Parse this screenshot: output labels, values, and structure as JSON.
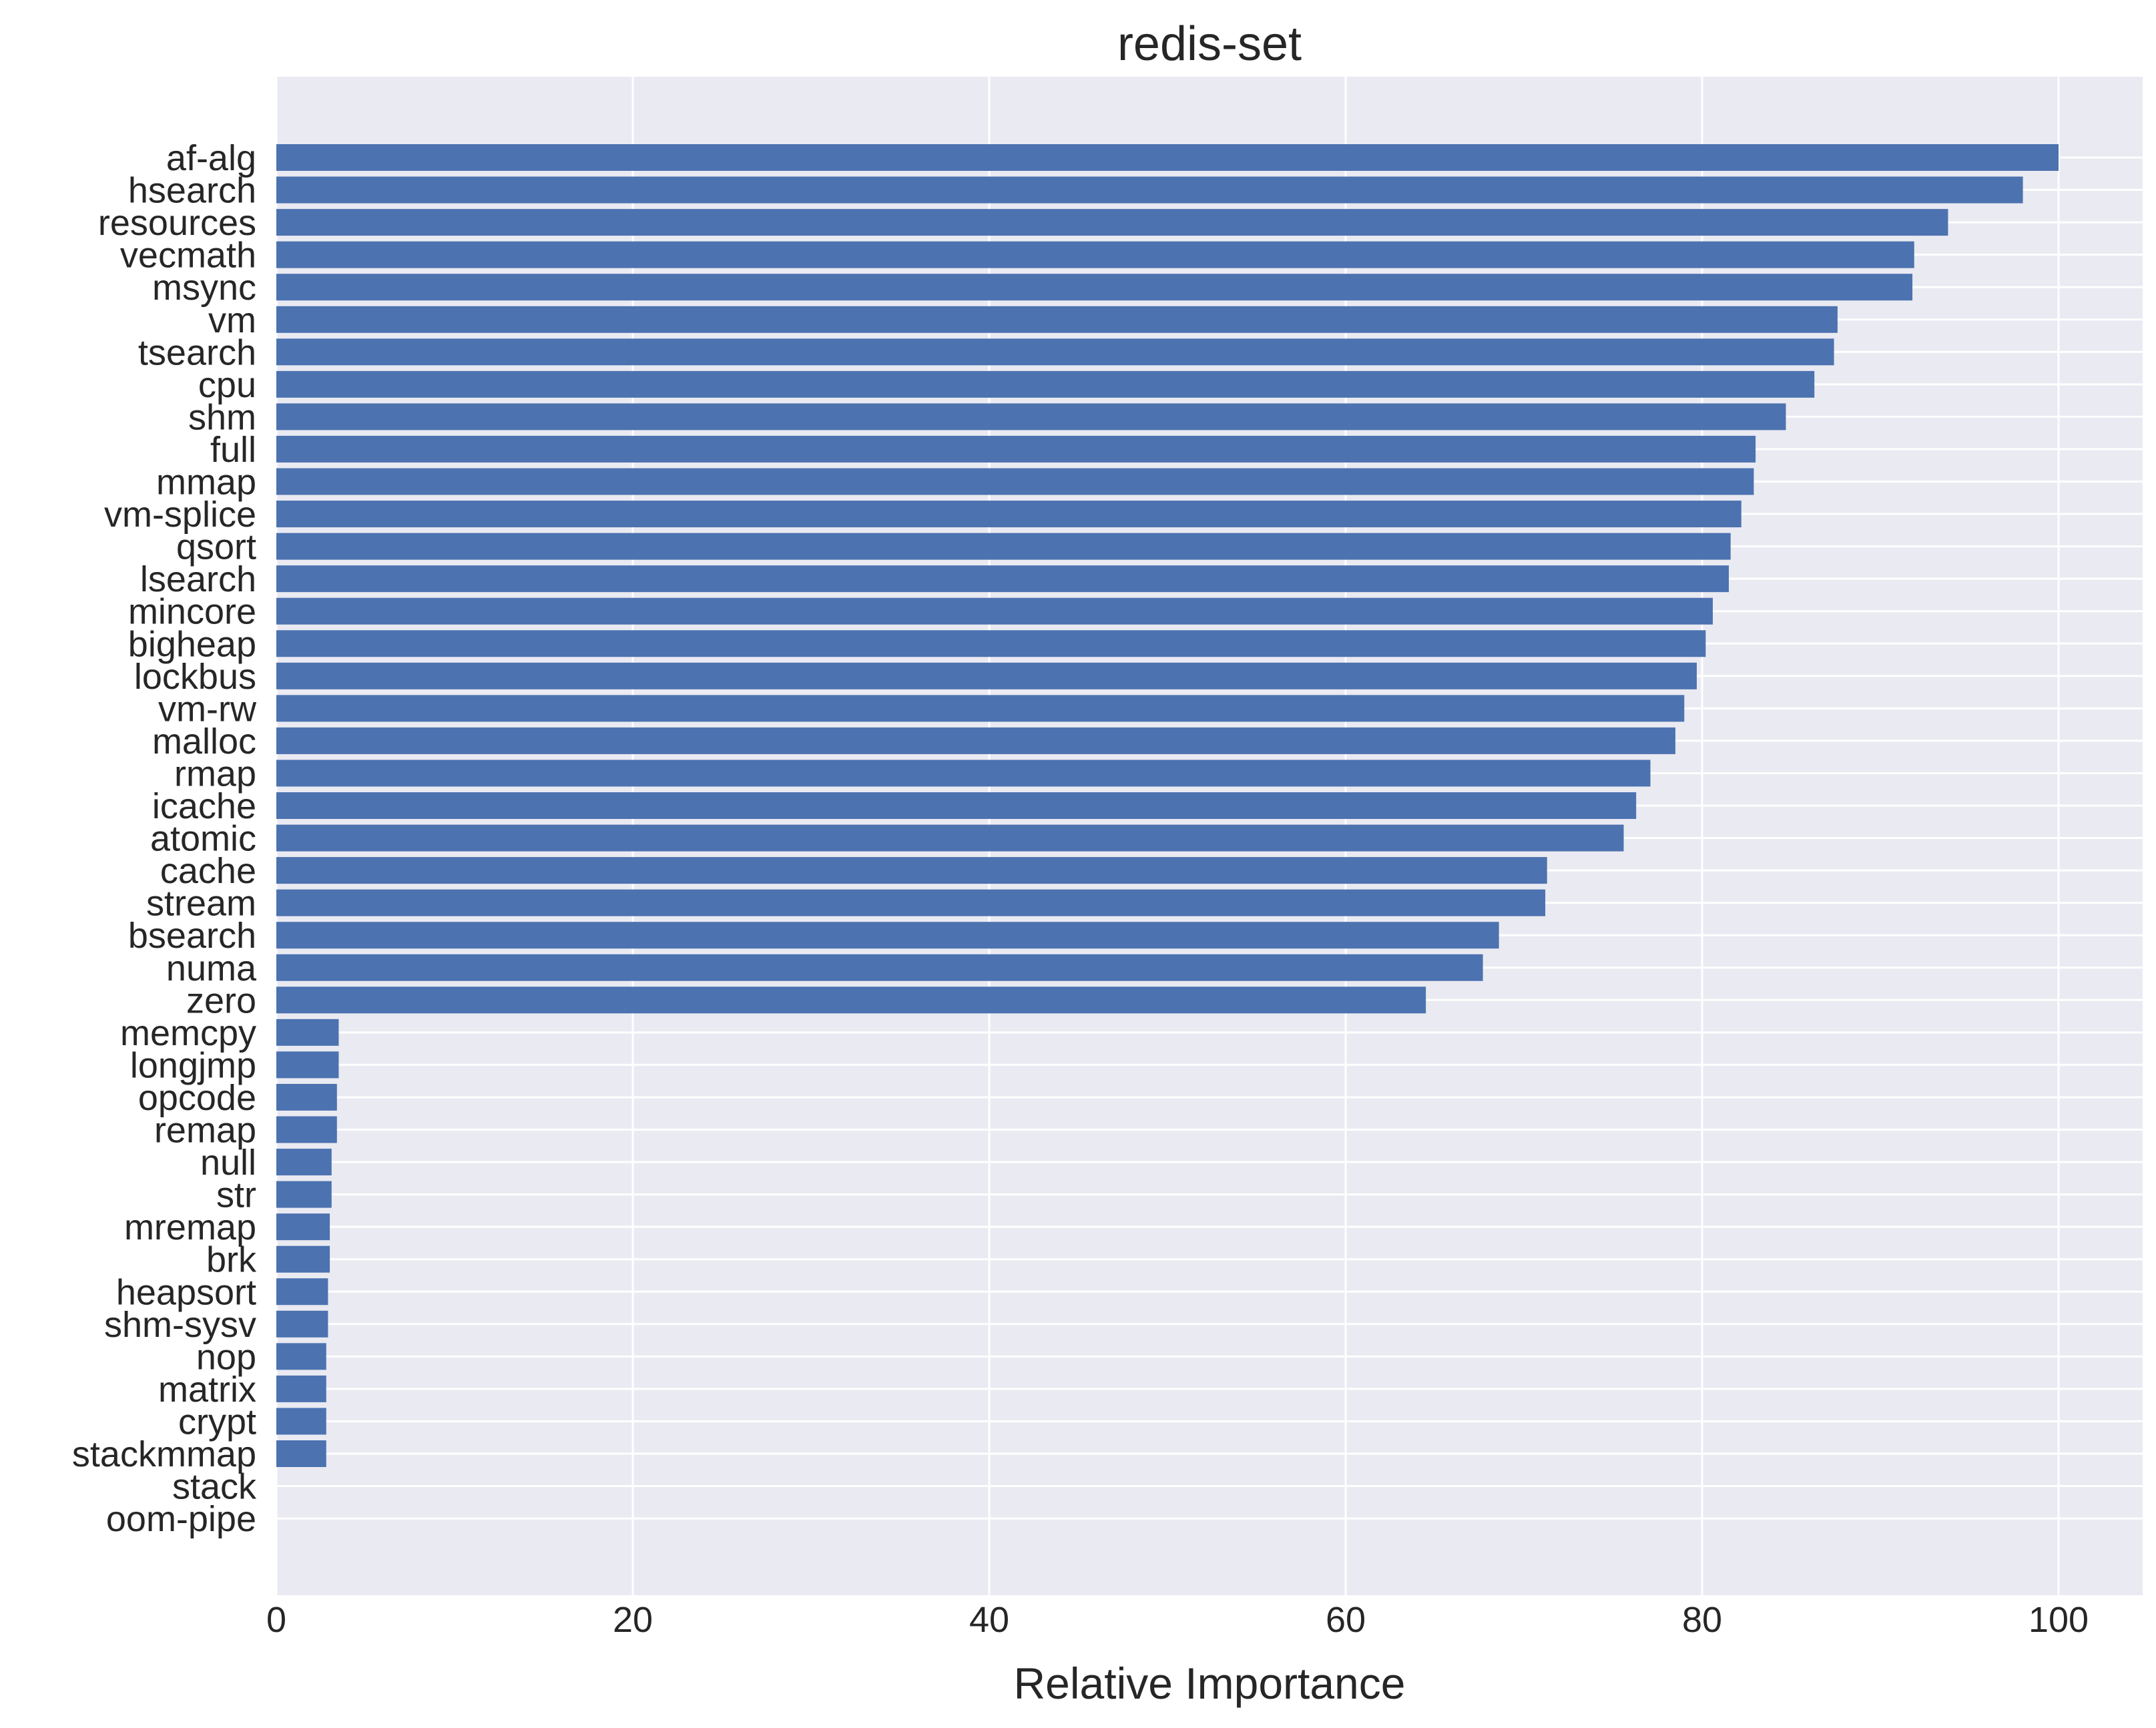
{
  "chart_data": {
    "type": "bar",
    "orientation": "horizontal",
    "title": "redis-set",
    "xlabel": "Relative Importance",
    "ylabel": "",
    "xlim": [
      0,
      105
    ],
    "xticks": [
      0,
      20,
      40,
      60,
      80,
      100
    ],
    "grid": true,
    "bar_color": "#4c72b0",
    "background_color": "#eaeaf2",
    "categories": [
      "af-alg",
      "hsearch",
      "resources",
      "vecmath",
      "msync",
      "vm",
      "tsearch",
      "cpu",
      "shm",
      "full",
      "mmap",
      "vm-splice",
      "qsort",
      "lsearch",
      "mincore",
      "bigheap",
      "lockbus",
      "vm-rw",
      "malloc",
      "rmap",
      "icache",
      "atomic",
      "cache",
      "stream",
      "bsearch",
      "numa",
      "zero",
      "memcpy",
      "longjmp",
      "opcode",
      "remap",
      "null",
      "str",
      "mremap",
      "brk",
      "heapsort",
      "shm-sysv",
      "nop",
      "matrix",
      "crypt",
      "stackmmap",
      "stack",
      "oom-pipe"
    ],
    "values": [
      100.0,
      98.0,
      93.8,
      91.9,
      91.8,
      87.6,
      87.4,
      86.3,
      84.7,
      83.0,
      82.9,
      82.2,
      81.6,
      81.5,
      80.6,
      80.2,
      79.7,
      79.0,
      78.5,
      77.1,
      76.3,
      75.6,
      71.3,
      71.2,
      68.6,
      67.7,
      64.5,
      3.5,
      3.5,
      3.4,
      3.4,
      3.1,
      3.1,
      3.0,
      3.0,
      2.9,
      2.9,
      2.8,
      2.8,
      2.8,
      2.8,
      0.0,
      0.0
    ]
  }
}
